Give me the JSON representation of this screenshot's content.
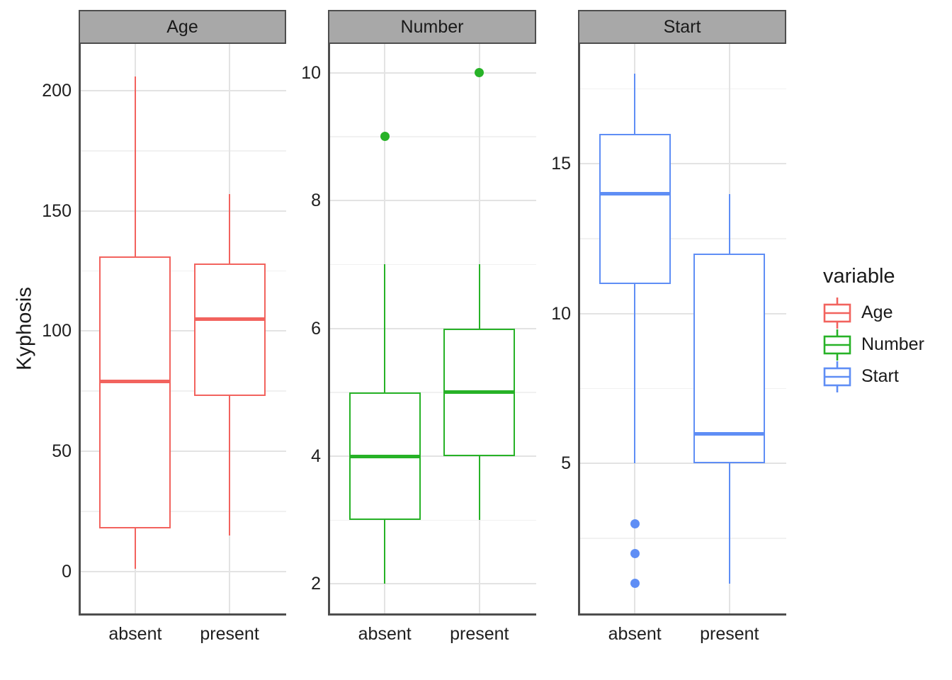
{
  "chart_data": {
    "type": "boxplot",
    "title": "",
    "xlabel": "",
    "ylabel": "Kyphosis",
    "grid": "on",
    "categories": [
      "absent",
      "present"
    ],
    "legend": {
      "title": "variable",
      "position": "right",
      "entries": [
        {
          "label": "Age",
          "color": "#f2635e"
        },
        {
          "label": "Number",
          "color": "#27b227"
        },
        {
          "label": "Start",
          "color": "#5f8ef5"
        }
      ]
    },
    "colors": {
      "age": "#f2635e",
      "number": "#27b227",
      "start": "#5f8ef5",
      "strip_fill": "#a8a8a8",
      "axis_line": "#4e4e4e",
      "grid_major": "#e3e3e3"
    },
    "facets": [
      {
        "label": "Age",
        "color": "#f2635e",
        "ylim": [
          -17.5,
          219.5
        ],
        "ticks": [
          0,
          50,
          100,
          150,
          200
        ],
        "minor_ticks": [
          25,
          75,
          125,
          175
        ],
        "boxes": [
          {
            "category": "absent",
            "whisker_low": 1,
            "q1": 18,
            "median": 79,
            "q3": 131,
            "whisker_high": 206,
            "outliers": []
          },
          {
            "category": "present",
            "whisker_low": 15,
            "q1": 73,
            "median": 105,
            "q3": 128,
            "whisker_high": 157,
            "outliers": []
          }
        ]
      },
      {
        "label": "Number",
        "color": "#27b227",
        "ylim": [
          1.54,
          10.45
        ],
        "ticks": [
          2,
          4,
          6,
          8,
          10
        ],
        "minor_ticks": [
          3,
          5,
          7,
          9
        ],
        "boxes": [
          {
            "category": "absent",
            "whisker_low": 2,
            "q1": 3,
            "median": 4,
            "q3": 5,
            "whisker_high": 7,
            "outliers": [
              9
            ]
          },
          {
            "category": "present",
            "whisker_low": 3,
            "q1": 4,
            "median": 5,
            "q3": 6,
            "whisker_high": 7,
            "outliers": [
              10
            ]
          }
        ]
      },
      {
        "label": "Start",
        "color": "#5f8ef5",
        "ylim": [
          0.0,
          19.0
        ],
        "ticks": [
          5,
          10,
          15
        ],
        "minor_ticks": [
          2.5,
          7.5,
          12.5,
          17.5
        ],
        "boxes": [
          {
            "category": "absent",
            "whisker_low": 5,
            "q1": 11,
            "median": 14,
            "q3": 16,
            "whisker_high": 18,
            "outliers": [
              3,
              2,
              1
            ]
          },
          {
            "category": "present",
            "whisker_low": 1,
            "q1": 5,
            "median": 6,
            "q3": 12,
            "whisker_high": 14,
            "outliers": []
          }
        ]
      }
    ]
  }
}
